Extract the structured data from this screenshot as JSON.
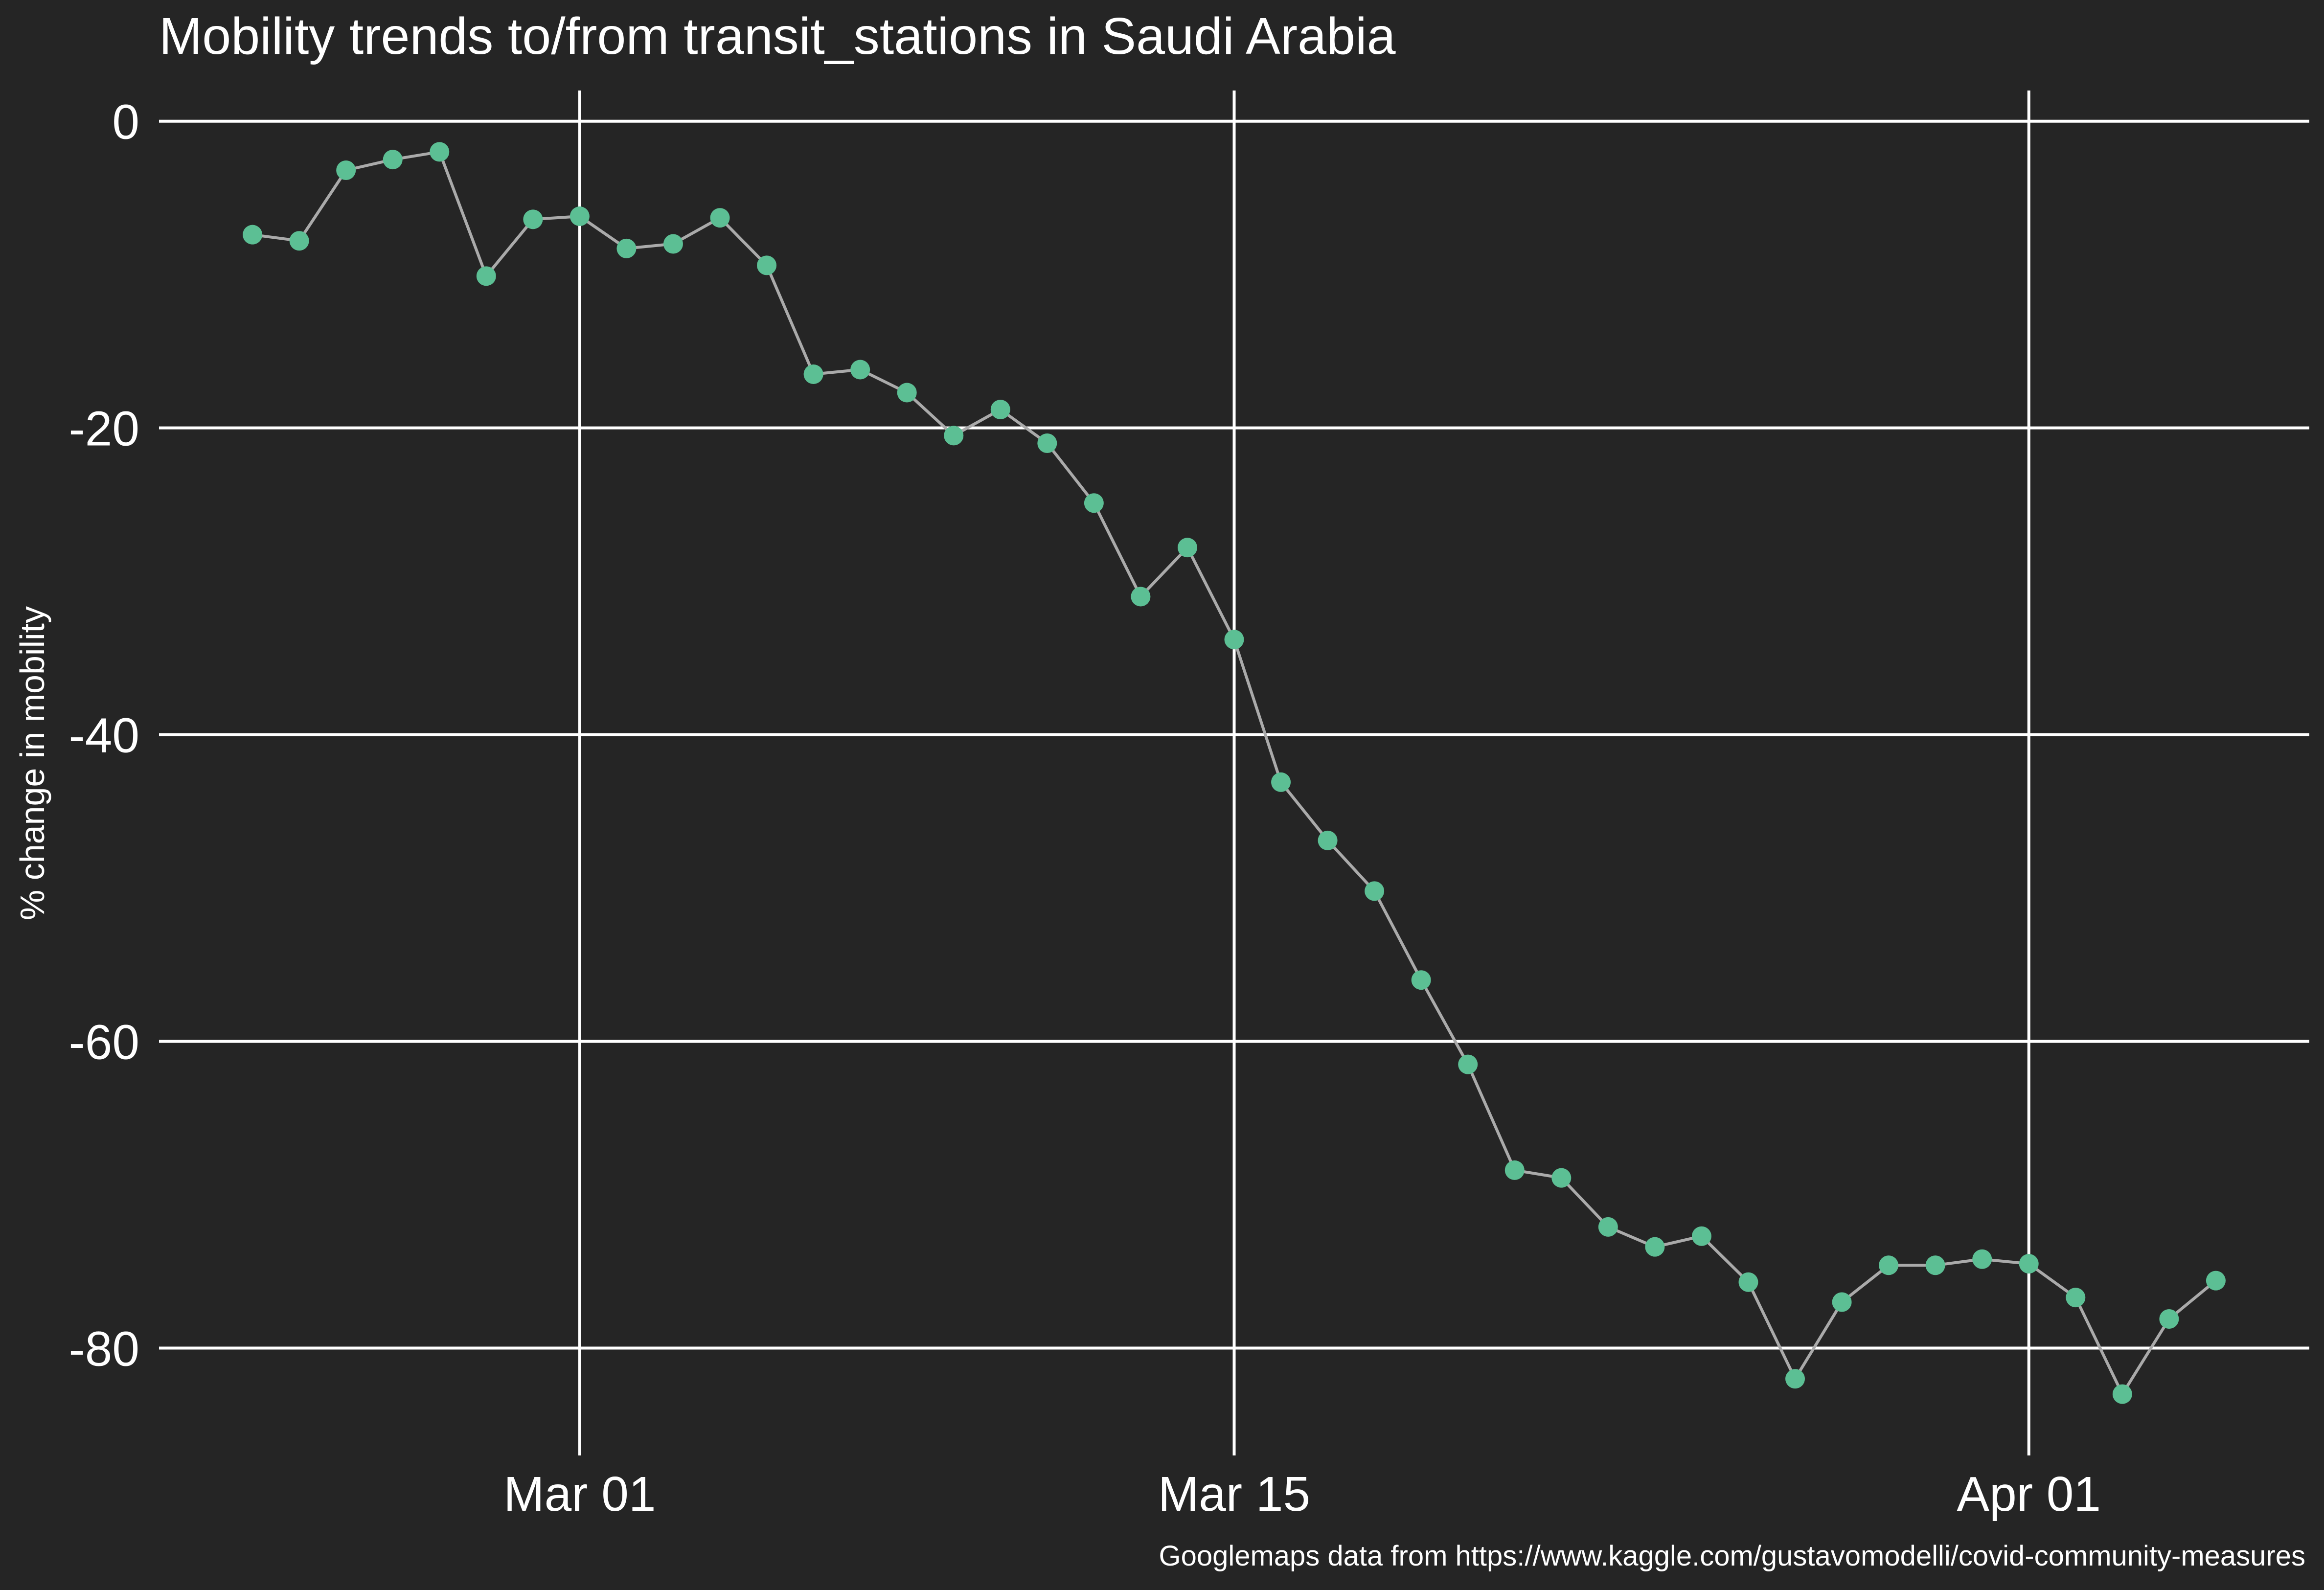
{
  "chart_data": {
    "type": "line",
    "title": "Mobility trends to/from transit_stations in Saudi Arabia",
    "ylabel": "% change in mobility",
    "xlabel": "",
    "caption": "Googlemaps data from https://www.kaggle.com/gustavomodelli/covid-community-measures",
    "ylim": [
      -87,
      2
    ],
    "xlim": [
      "2020-02-21",
      "2020-04-07"
    ],
    "grid": true,
    "x_ticks": [
      {
        "date": "2020-03-01",
        "label": "Mar 01"
      },
      {
        "date": "2020-03-15",
        "label": "Mar 15"
      },
      {
        "date": "2020-04-01",
        "label": "Apr 01"
      }
    ],
    "y_ticks": [
      0,
      -20,
      -40,
      -60,
      -80
    ],
    "series": [
      {
        "color": "#5cbf94",
        "line_color": "#aaaaaa",
        "x": [
          "2020-02-23",
          "2020-02-24",
          "2020-02-25",
          "2020-02-26",
          "2020-02-27",
          "2020-02-28",
          "2020-02-29",
          "2020-03-01",
          "2020-03-02",
          "2020-03-03",
          "2020-03-04",
          "2020-03-05",
          "2020-03-06",
          "2020-03-07",
          "2020-03-08",
          "2020-03-09",
          "2020-03-10",
          "2020-03-11",
          "2020-03-12",
          "2020-03-13",
          "2020-03-14",
          "2020-03-15",
          "2020-03-16",
          "2020-03-17",
          "2020-03-18",
          "2020-03-19",
          "2020-03-20",
          "2020-03-21",
          "2020-03-22",
          "2020-03-23",
          "2020-03-24",
          "2020-03-25",
          "2020-03-26",
          "2020-03-27",
          "2020-03-28",
          "2020-03-29",
          "2020-03-30",
          "2020-03-31",
          "2020-04-01",
          "2020-04-02",
          "2020-04-03",
          "2020-04-04",
          "2020-04-05"
        ],
        "values": [
          -7.4,
          -7.8,
          -3.2,
          -2.5,
          -2.0,
          -10.1,
          -6.4,
          -6.2,
          -8.3,
          -8.0,
          -6.3,
          -9.4,
          -16.5,
          -16.2,
          -17.7,
          -20.5,
          -18.8,
          -21.0,
          -24.9,
          -31.0,
          -27.8,
          -33.8,
          -43.1,
          -46.9,
          -50.2,
          -56.0,
          -61.5,
          -68.4,
          -68.9,
          -72.1,
          -73.4,
          -72.7,
          -75.7,
          -82.0,
          -77.0,
          -74.6,
          -74.6,
          -74.2,
          -74.5,
          -76.7,
          -83.0,
          -78.1,
          -75.6
        ]
      }
    ]
  }
}
